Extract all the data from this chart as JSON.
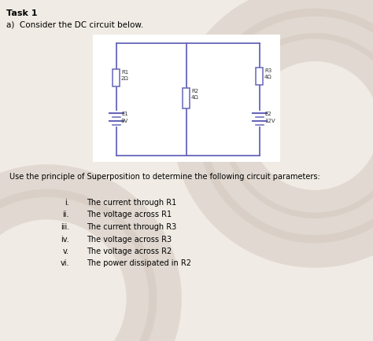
{
  "title": "Task 1",
  "subtitle": "a)  Consider the DC circuit below.",
  "superposition_text": "Use the principle of Superposition to determine the following circuit parameters:",
  "roman_numerals": [
    "i.",
    "ii.",
    "iii.",
    "iv.",
    "v.",
    "vi."
  ],
  "list_items": [
    "The current through R1",
    "The voltage across R1",
    "The current through R3",
    "The voltage across R3",
    "The voltage across R2",
    "The power dissipated in R2"
  ],
  "circuit_box_color": "#6666bb",
  "background_color": "#f0ebe4",
  "white_box_color": "#ffffff",
  "R1_label": "R1",
  "R1_val": "2Ω",
  "R2_label": "R2",
  "R2_val": "4Ω",
  "R3_label": "R3",
  "R3_val": "4Ω",
  "E1_label": "E1",
  "E1_val": "8V",
  "E2_label": "E2",
  "E2_val": "12V",
  "text_color": "#333333",
  "decoration_color": "#d0c5ba"
}
